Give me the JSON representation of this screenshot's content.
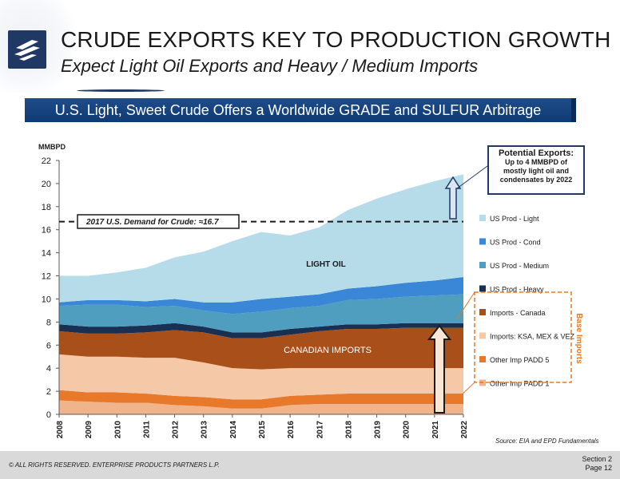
{
  "header": {
    "title": "CRUDE EXPORTS KEY TO PRODUCTION GROWTH",
    "subtitle": "Expect Light Oil Exports and Heavy / Medium Imports"
  },
  "banner": {
    "text": "U.S. Light, Sweet Crude Offers a Worldwide GRADE and SULFUR Arbitrage"
  },
  "callout": {
    "title": "Potential Exports:",
    "line1": "Up to 4 MMBPD of",
    "line2": "mostly light oil and",
    "line3": "condensates by 2022"
  },
  "source": "Source:  EIA and EPD Fundamentals",
  "footer": {
    "copyright": "© ALL RIGHTS RESERVED. ENTERPRISE PRODUCTS PARTNERS L.P.",
    "section": "Section 2",
    "page": "Page 12"
  },
  "colors": {
    "light": "#b6dcea",
    "cond": "#3a87d8",
    "medium": "#4f9dbf",
    "heavy": "#1a3052",
    "canada": "#a9501a",
    "ksa": "#f5c8a8",
    "padd5": "#e8792b",
    "padd1": "#f0b48c"
  },
  "chart_data": {
    "type": "area",
    "ylabel": "MMBPD",
    "ylim": [
      0,
      22
    ],
    "yticks": [
      0,
      2,
      4,
      6,
      8,
      10,
      12,
      14,
      16,
      18,
      20,
      22
    ],
    "x": [
      "2008",
      "2009",
      "2010",
      "2011",
      "2012",
      "2013",
      "2014",
      "2015",
      "2016",
      "2017",
      "2018",
      "2019",
      "2020",
      "2021",
      "2022"
    ],
    "series": [
      {
        "name": "Other Imp PADD 1",
        "key": "padd1",
        "values": [
          1.2,
          1.1,
          1.0,
          1.0,
          0.8,
          0.7,
          0.5,
          0.5,
          0.8,
          0.9,
          0.9,
          0.9,
          0.9,
          0.9,
          0.9
        ]
      },
      {
        "name": "Other Imp PADD 5",
        "key": "padd5",
        "values": [
          0.9,
          0.8,
          0.9,
          0.8,
          0.8,
          0.8,
          0.8,
          0.8,
          0.8,
          0.8,
          0.9,
          0.9,
          0.9,
          0.9,
          0.9
        ]
      },
      {
        "name": "Imports: KSA, MEX & VEZ",
        "key": "ksa",
        "values": [
          3.1,
          3.1,
          3.1,
          3.1,
          3.3,
          3.0,
          2.7,
          2.6,
          2.4,
          2.3,
          2.2,
          2.2,
          2.2,
          2.2,
          2.2
        ]
      },
      {
        "name": "Imports - Canada",
        "key": "canada",
        "values": [
          2.0,
          2.0,
          2.0,
          2.2,
          2.4,
          2.6,
          2.6,
          2.7,
          2.9,
          3.2,
          3.4,
          3.4,
          3.5,
          3.5,
          3.5
        ]
      },
      {
        "name": "US Prod - Heavy",
        "key": "heavy",
        "values": [
          0.6,
          0.6,
          0.6,
          0.6,
          0.6,
          0.5,
          0.5,
          0.5,
          0.5,
          0.4,
          0.4,
          0.4,
          0.4,
          0.4,
          0.4
        ]
      },
      {
        "name": "US Prod - Medium",
        "key": "medium",
        "values": [
          1.6,
          1.9,
          1.9,
          1.6,
          1.5,
          1.4,
          1.6,
          1.8,
          1.8,
          1.8,
          2.1,
          2.2,
          2.3,
          2.4,
          2.5
        ]
      },
      {
        "name": "US Prod - Cond",
        "key": "cond",
        "values": [
          0.3,
          0.4,
          0.4,
          0.5,
          0.6,
          0.7,
          1.0,
          1.1,
          1.0,
          1.0,
          1.0,
          1.1,
          1.2,
          1.3,
          1.5
        ]
      },
      {
        "name": "US Prod - Light",
        "key": "light",
        "values": [
          2.3,
          2.1,
          2.4,
          2.9,
          3.6,
          4.4,
          5.3,
          5.8,
          5.3,
          5.8,
          6.8,
          7.6,
          8.1,
          8.6,
          8.9
        ]
      }
    ],
    "legend_order": [
      "light",
      "cond",
      "medium",
      "heavy",
      "canada",
      "ksa",
      "padd5",
      "padd1"
    ],
    "annotations": {
      "light_oil": "LIGHT OIL",
      "canadian": "CANADIAN IMPORTS",
      "demand_label": "2017 U.S. Demand for Crude:  ≈16.7",
      "demand_value": 16.7,
      "base_imports": "Base Imports"
    }
  }
}
